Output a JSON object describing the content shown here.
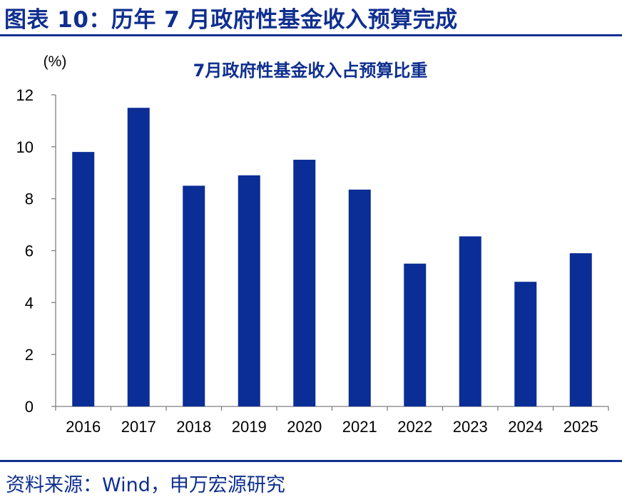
{
  "figure": {
    "title": "图表 10：历年 7 月政府性基金收入预算完成",
    "source": "资料来源：Wind，申万宏源研究"
  },
  "colors": {
    "brand": "#0f2f8f",
    "bar": "#0a2d96",
    "axis": "#7f7f7f",
    "text": "#000000"
  },
  "chart_data": {
    "type": "bar",
    "title": "7月政府性基金收入占预算比重",
    "unit_label": "(%)",
    "xlabel": "",
    "ylabel": "",
    "categories": [
      "2016",
      "2017",
      "2018",
      "2019",
      "2020",
      "2021",
      "2022",
      "2023",
      "2024",
      "2025"
    ],
    "series": [
      {
        "values": [
          9.8,
          11.5,
          8.5,
          8.9,
          9.5,
          8.35,
          5.5,
          6.55,
          4.8,
          5.9
        ]
      }
    ],
    "ylim": [
      0,
      12
    ],
    "yticks": [
      0,
      2,
      4,
      6,
      8,
      10,
      12
    ],
    "grid": false,
    "legend": "none"
  }
}
